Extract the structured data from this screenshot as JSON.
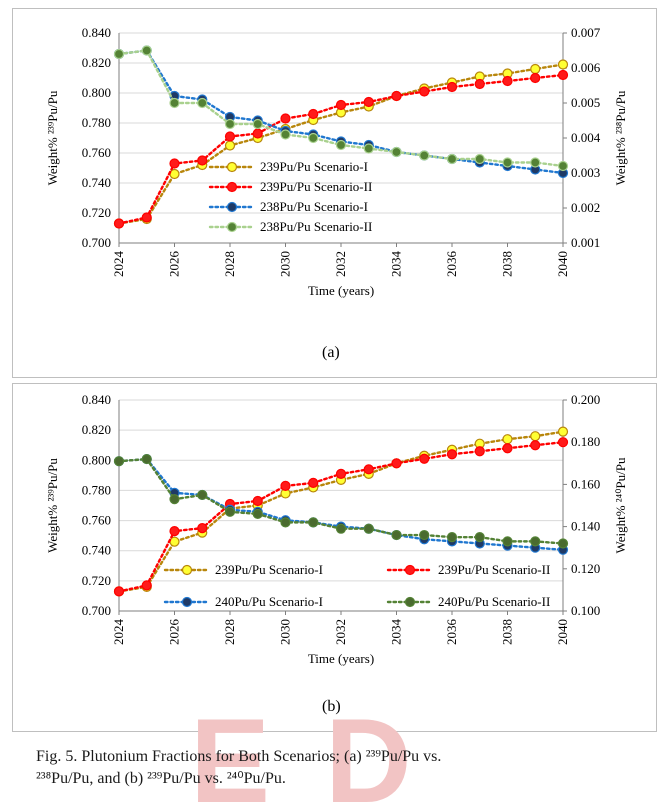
{
  "caption": {
    "line1": "Fig. 5. Plutonium Fractions for Both Scenarios; (a) ²³⁹Pu/Pu vs.",
    "line2": "²³⁸Pu/Pu, and (b) ²³⁹Pu/Pu vs. ²⁴⁰Pu/Pu."
  },
  "chart_data": [
    {
      "type": "line",
      "panel_label": "(a)",
      "xlabel": "Time (years)",
      "ylabel": "Weight% ²³⁹Pu/Pu",
      "y2label": "Weight% ²³⁸Pu/Pu",
      "xlim": [
        2024,
        2040
      ],
      "ylim": [
        0.7,
        0.84
      ],
      "y2lim": [
        0.001,
        0.007
      ],
      "x_ticks": [
        "2024",
        "2026",
        "2028",
        "2030",
        "2032",
        "2034",
        "2036",
        "2038",
        "2040"
      ],
      "y_ticks": [
        "0.700",
        "0.720",
        "0.740",
        "0.760",
        "0.780",
        "0.800",
        "0.820",
        "0.840"
      ],
      "y2_ticks": [
        "0.001",
        "0.002",
        "0.003",
        "0.004",
        "0.005",
        "0.006",
        "0.007"
      ],
      "legend_position": "center-right inside plot",
      "x": [
        2024,
        2025,
        2026,
        2027,
        2028,
        2029,
        2030,
        2031,
        2032,
        2033,
        2034,
        2035,
        2036,
        2037,
        2038,
        2039,
        2040
      ],
      "series": [
        {
          "name": "239Pu/Pu Scenario-I",
          "axis": "left",
          "color": "#b8860b",
          "marker_fill": "#ffff33",
          "values": [
            0.713,
            0.716,
            0.746,
            0.752,
            0.765,
            0.77,
            0.776,
            0.782,
            0.787,
            0.791,
            0.798,
            0.803,
            0.807,
            0.811,
            0.813,
            0.816,
            0.819
          ]
        },
        {
          "name": "239Pu/Pu Scenario-II",
          "axis": "left",
          "color": "#ff0000",
          "marker_fill": "#ff1a1a",
          "values": [
            0.713,
            0.717,
            0.753,
            0.755,
            0.771,
            0.773,
            0.783,
            0.786,
            0.792,
            0.794,
            0.798,
            0.801,
            0.804,
            0.806,
            0.808,
            0.81,
            0.812
          ]
        },
        {
          "name": "238Pu/Pu Scenario-I",
          "axis": "right",
          "color": "#1f77d0",
          "marker_fill": "#1f3a66",
          "values": [
            0.0064,
            0.0065,
            0.0052,
            0.0051,
            0.0046,
            0.0045,
            0.0042,
            0.0041,
            0.0039,
            0.0038,
            0.0036,
            0.0035,
            0.0034,
            0.0033,
            0.0032,
            0.0031,
            0.003
          ]
        },
        {
          "name": "238Pu/Pu Scenario-II",
          "axis": "right",
          "color": "#a9d18e",
          "marker_fill": "#548235",
          "values": [
            0.0064,
            0.0065,
            0.005,
            0.005,
            0.0044,
            0.0044,
            0.0041,
            0.004,
            0.0038,
            0.0037,
            0.0036,
            0.0035,
            0.0034,
            0.0034,
            0.0033,
            0.0033,
            0.0032
          ]
        }
      ]
    },
    {
      "type": "line",
      "panel_label": "(b)",
      "xlabel": "Time (years)",
      "ylabel": "Weight% ²³⁹Pu/Pu",
      "y2label": "Weight% ²⁴⁰Pu/Pu",
      "xlim": [
        2024,
        2040
      ],
      "ylim": [
        0.7,
        0.84
      ],
      "y2lim": [
        0.1,
        0.2
      ],
      "x_ticks": [
        "2024",
        "2026",
        "2028",
        "2030",
        "2032",
        "2034",
        "2036",
        "2038",
        "2040"
      ],
      "y_ticks": [
        "0.700",
        "0.720",
        "0.740",
        "0.760",
        "0.780",
        "0.800",
        "0.820",
        "0.840"
      ],
      "y2_ticks": [
        "0.100",
        "0.120",
        "0.140",
        "0.160",
        "0.180",
        "0.200"
      ],
      "legend_position": "bottom inside plot",
      "x": [
        2024,
        2025,
        2026,
        2027,
        2028,
        2029,
        2030,
        2031,
        2032,
        2033,
        2034,
        2035,
        2036,
        2037,
        2038,
        2039,
        2040
      ],
      "series": [
        {
          "name": "239Pu/Pu Scenario-I",
          "axis": "left",
          "color": "#b8860b",
          "marker_fill": "#ffff33",
          "values": [
            0.713,
            0.716,
            0.746,
            0.752,
            0.768,
            0.77,
            0.778,
            0.782,
            0.787,
            0.791,
            0.798,
            0.803,
            0.807,
            0.811,
            0.814,
            0.816,
            0.819
          ]
        },
        {
          "name": "239Pu/Pu Scenario-II",
          "axis": "left",
          "color": "#ff0000",
          "marker_fill": "#ff1a1a",
          "values": [
            0.713,
            0.717,
            0.753,
            0.755,
            0.771,
            0.773,
            0.783,
            0.785,
            0.791,
            0.794,
            0.798,
            0.801,
            0.804,
            0.806,
            0.808,
            0.81,
            0.812
          ]
        },
        {
          "name": "240Pu/Pu Scenario-I",
          "axis": "right",
          "color": "#1f77d0",
          "marker_fill": "#1f3a66",
          "values": [
            0.171,
            0.172,
            0.156,
            0.155,
            0.148,
            0.147,
            0.143,
            0.142,
            0.14,
            0.139,
            0.136,
            0.134,
            0.133,
            0.132,
            0.131,
            0.13,
            0.129
          ]
        },
        {
          "name": "240Pu/Pu Scenario-II",
          "axis": "right",
          "color": "#548235",
          "marker_fill": "#4a6b2f",
          "values": [
            0.171,
            0.172,
            0.153,
            0.155,
            0.147,
            0.146,
            0.142,
            0.142,
            0.139,
            0.139,
            0.136,
            0.136,
            0.135,
            0.135,
            0.133,
            0.133,
            0.132
          ]
        }
      ]
    }
  ]
}
